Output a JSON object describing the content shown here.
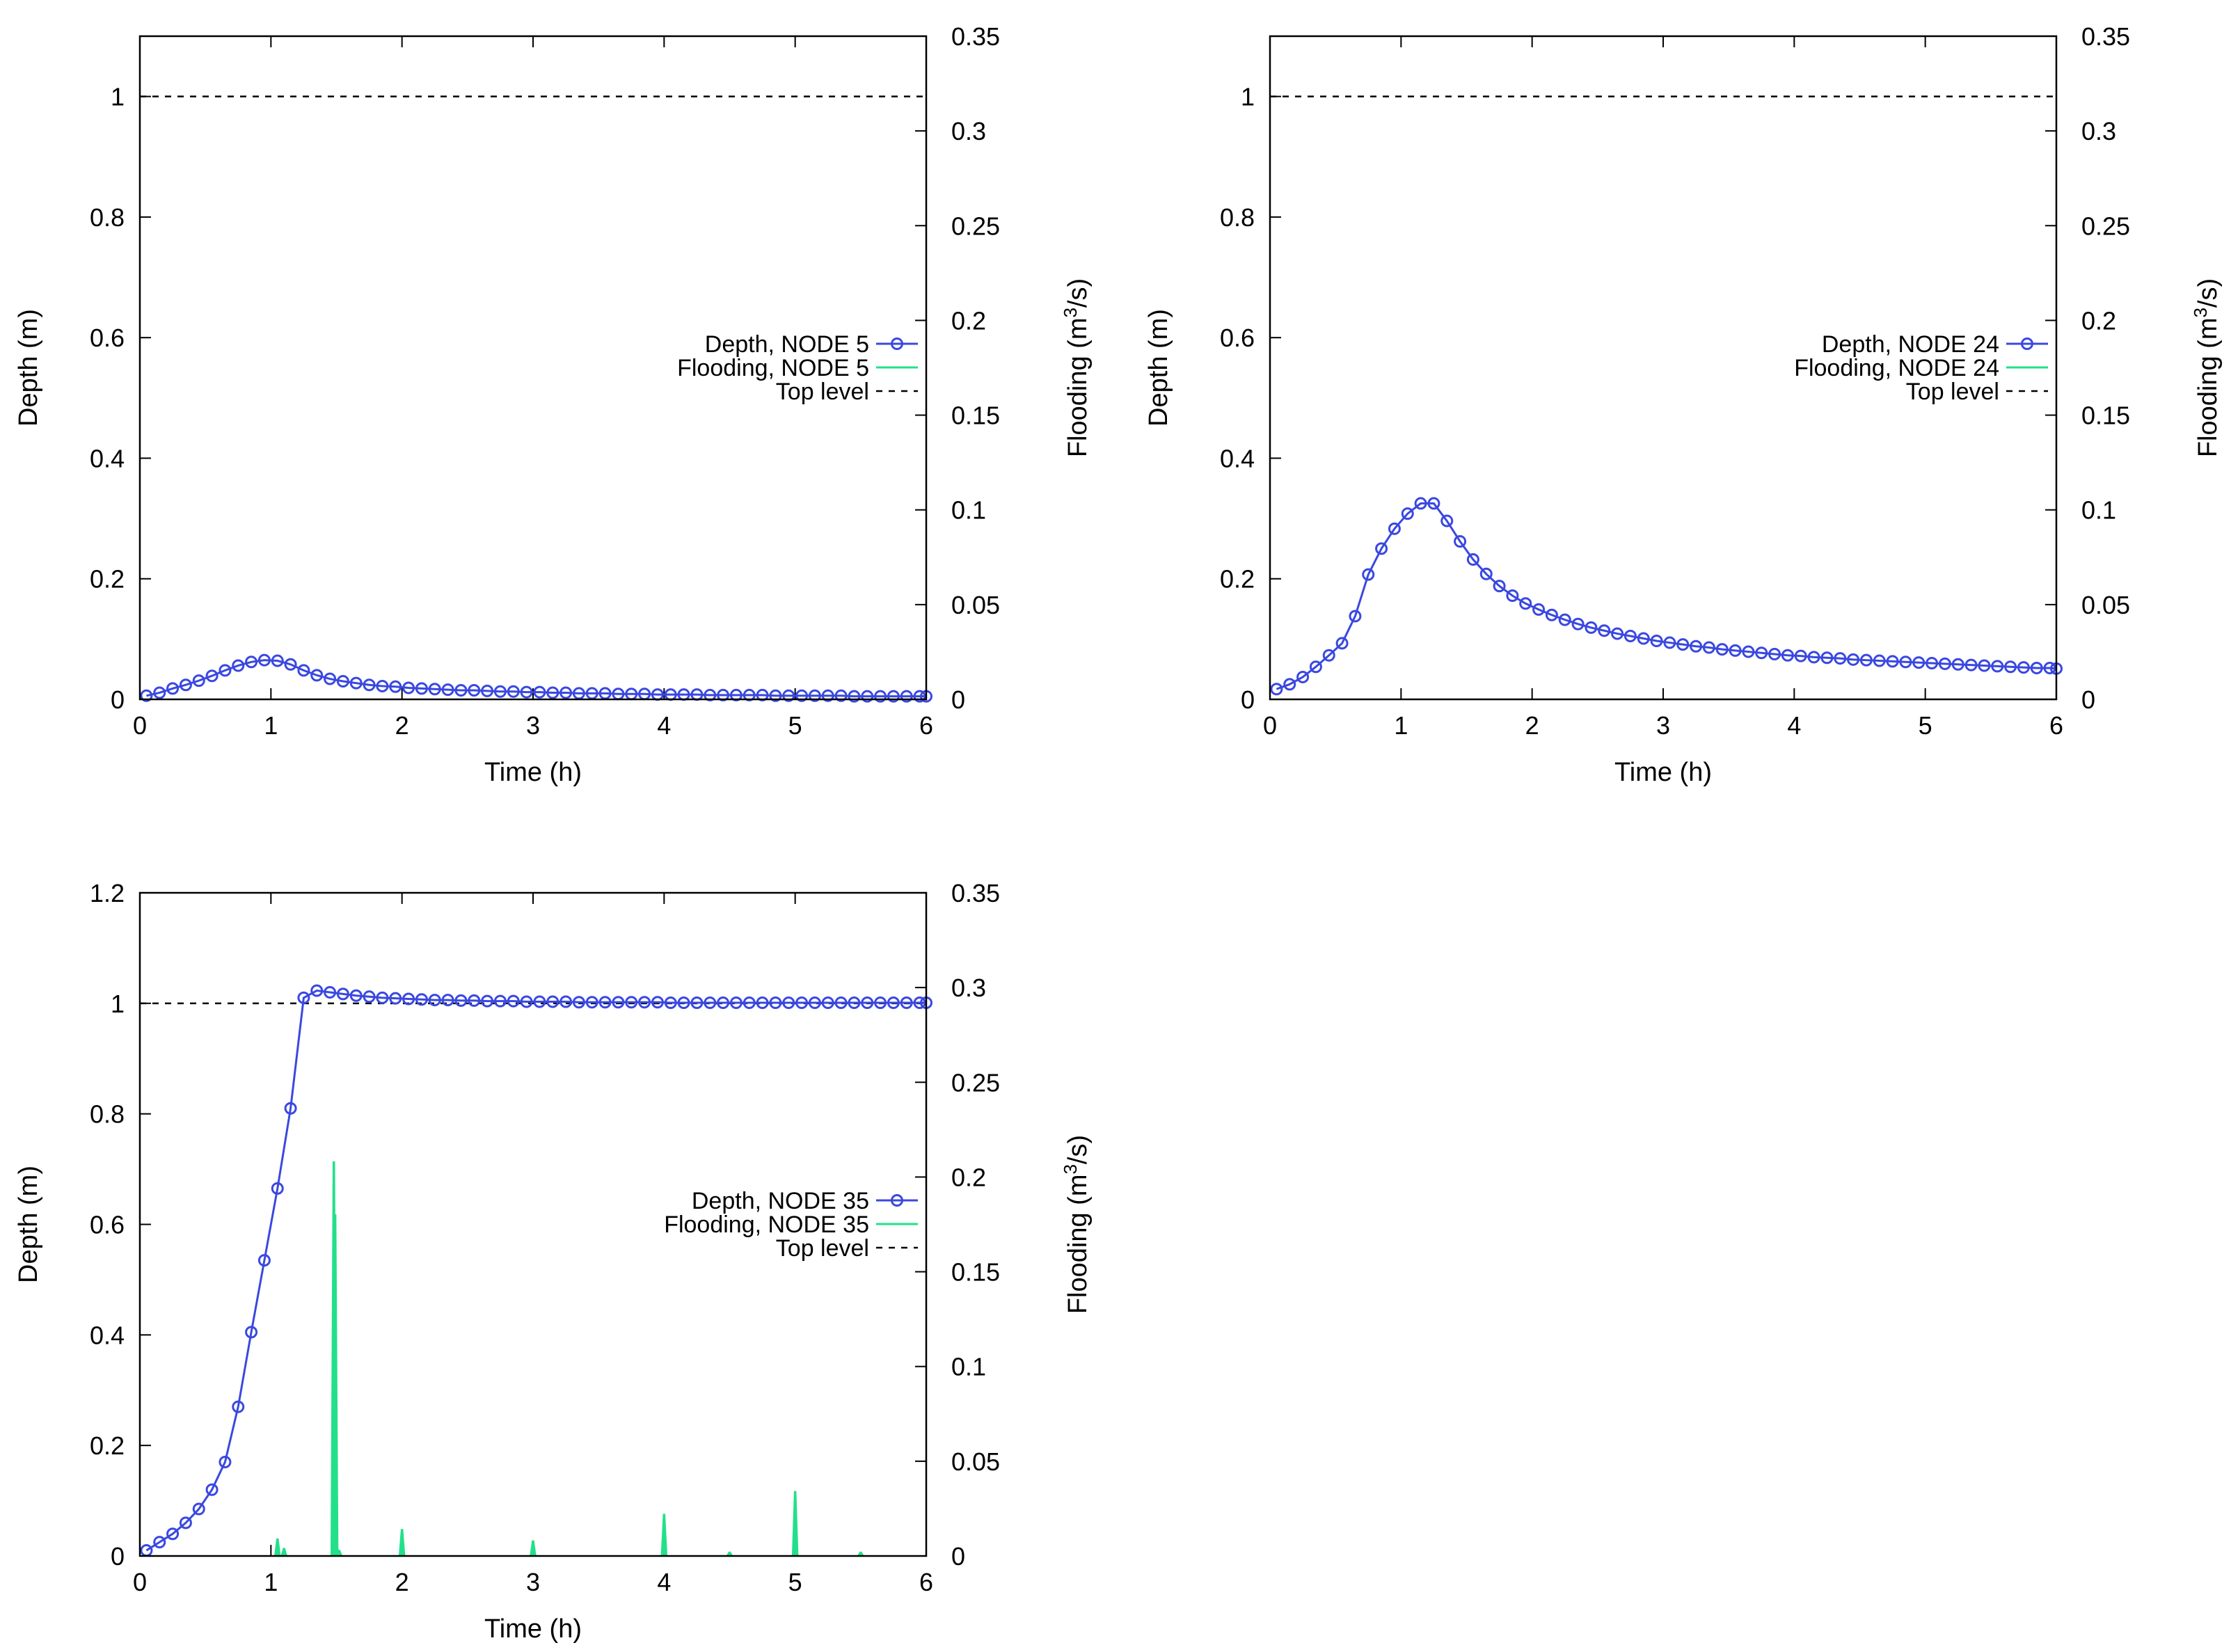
{
  "colors": {
    "depth": "#3a48e0",
    "flooding": "#22e08a",
    "top_level": "#000000",
    "axis": "#000000"
  },
  "chart_data": [
    {
      "type": "line",
      "id": "node5",
      "xlabel": "Time (h)",
      "ylabel": "Depth (m)",
      "y2label": "Flooding (m³/s)",
      "y2label_base": "Flooding (m",
      "y2label_sup": "3",
      "y2label_tail": "/s)",
      "xlim": [
        0,
        6
      ],
      "ylim": [
        0,
        1.1
      ],
      "y2lim": [
        0,
        0.35
      ],
      "xticks": [
        0,
        1,
        2,
        3,
        4,
        5,
        6
      ],
      "yticks": [
        0,
        0.2,
        0.4,
        0.6,
        0.8,
        1
      ],
      "y2ticks": [
        0,
        0.05,
        0.1,
        0.15,
        0.2,
        0.25,
        0.3,
        0.35
      ],
      "xtick_labels": [
        "0",
        "1",
        "2",
        "3",
        "4",
        "5",
        "6"
      ],
      "ytick_labels": [
        "0",
        "0.2",
        "0.4",
        "0.6",
        "0.8",
        "1"
      ],
      "y2tick_labels": [
        "0",
        "0.05",
        "0.1",
        "0.15",
        "0.2",
        "0.25",
        "0.3",
        "0.35"
      ],
      "legend": [
        "Depth, NODE 5",
        "Flooding, NODE 5",
        "Top level"
      ],
      "top_level": 1,
      "depth_series": {
        "name": "Depth, NODE 5",
        "x": [
          0.05,
          0.15,
          0.25,
          0.35,
          0.45,
          0.55,
          0.65,
          0.75,
          0.85,
          0.95,
          1.05,
          1.15,
          1.25,
          1.35,
          1.45,
          1.55,
          1.65,
          1.75,
          1.85,
          1.95,
          2.05,
          2.15,
          2.25,
          2.35,
          2.45,
          2.55,
          2.65,
          2.75,
          2.85,
          2.95,
          3.05,
          3.15,
          3.25,
          3.35,
          3.45,
          3.55,
          3.65,
          3.75,
          3.85,
          3.95,
          4.05,
          4.15,
          4.25,
          4.35,
          4.45,
          4.55,
          4.65,
          4.75,
          4.85,
          4.95,
          5.05,
          5.15,
          5.25,
          5.35,
          5.45,
          5.55,
          5.65,
          5.75,
          5.85,
          5.95,
          6.0
        ],
        "y": [
          0.006,
          0.011,
          0.018,
          0.024,
          0.031,
          0.039,
          0.048,
          0.056,
          0.062,
          0.065,
          0.064,
          0.058,
          0.048,
          0.04,
          0.034,
          0.03,
          0.027,
          0.024,
          0.022,
          0.021,
          0.019,
          0.018,
          0.017,
          0.016,
          0.015,
          0.015,
          0.014,
          0.013,
          0.013,
          0.012,
          0.012,
          0.011,
          0.011,
          0.01,
          0.01,
          0.01,
          0.009,
          0.009,
          0.009,
          0.008,
          0.008,
          0.008,
          0.008,
          0.007,
          0.007,
          0.007,
          0.007,
          0.007,
          0.006,
          0.006,
          0.006,
          0.006,
          0.006,
          0.006,
          0.005,
          0.005,
          0.005,
          0.005,
          0.005,
          0.005,
          0.005
        ]
      },
      "flooding_series": {
        "name": "Flooding, NODE 5",
        "spikes": []
      }
    },
    {
      "type": "line",
      "id": "node24",
      "xlabel": "Time (h)",
      "ylabel": "Depth (m)",
      "y2label": "Flooding (m³/s)",
      "y2label_base": "Flooding (m",
      "y2label_sup": "3",
      "y2label_tail": "/s)",
      "xlim": [
        0,
        6
      ],
      "ylim": [
        0,
        1.1
      ],
      "y2lim": [
        0,
        0.35
      ],
      "xticks": [
        0,
        1,
        2,
        3,
        4,
        5,
        6
      ],
      "yticks": [
        0,
        0.2,
        0.4,
        0.6,
        0.8,
        1
      ],
      "y2ticks": [
        0,
        0.05,
        0.1,
        0.15,
        0.2,
        0.25,
        0.3,
        0.35
      ],
      "xtick_labels": [
        "0",
        "1",
        "2",
        "3",
        "4",
        "5",
        "6"
      ],
      "ytick_labels": [
        "0",
        "0.2",
        "0.4",
        "0.6",
        "0.8",
        "1"
      ],
      "y2tick_labels": [
        "0",
        "0.05",
        "0.1",
        "0.15",
        "0.2",
        "0.25",
        "0.3",
        "0.35"
      ],
      "legend": [
        "Depth, NODE 24",
        "Flooding, NODE 24",
        "Top level"
      ],
      "top_level": 1,
      "depth_series": {
        "name": "Depth, NODE 24",
        "x": [
          0.05,
          0.15,
          0.25,
          0.35,
          0.45,
          0.55,
          0.65,
          0.75,
          0.85,
          0.95,
          1.05,
          1.15,
          1.25,
          1.35,
          1.45,
          1.55,
          1.65,
          1.75,
          1.85,
          1.95,
          2.05,
          2.15,
          2.25,
          2.35,
          2.45,
          2.55,
          2.65,
          2.75,
          2.85,
          2.95,
          3.05,
          3.15,
          3.25,
          3.35,
          3.45,
          3.55,
          3.65,
          3.75,
          3.85,
          3.95,
          4.05,
          4.15,
          4.25,
          4.35,
          4.45,
          4.55,
          4.65,
          4.75,
          4.85,
          4.95,
          5.05,
          5.15,
          5.25,
          5.35,
          5.45,
          5.55,
          5.65,
          5.75,
          5.85,
          5.95,
          6.0
        ],
        "y": [
          0.017,
          0.025,
          0.037,
          0.054,
          0.073,
          0.093,
          0.138,
          0.207,
          0.25,
          0.283,
          0.308,
          0.325,
          0.325,
          0.296,
          0.262,
          0.232,
          0.208,
          0.188,
          0.172,
          0.159,
          0.149,
          0.14,
          0.132,
          0.125,
          0.119,
          0.114,
          0.109,
          0.105,
          0.101,
          0.097,
          0.094,
          0.091,
          0.088,
          0.086,
          0.083,
          0.081,
          0.079,
          0.077,
          0.075,
          0.073,
          0.072,
          0.07,
          0.069,
          0.068,
          0.066,
          0.065,
          0.064,
          0.063,
          0.062,
          0.061,
          0.06,
          0.059,
          0.058,
          0.057,
          0.056,
          0.055,
          0.054,
          0.053,
          0.052,
          0.052,
          0.051
        ]
      },
      "flooding_series": {
        "name": "Flooding, NODE 24",
        "spikes": []
      }
    },
    {
      "type": "line",
      "id": "node35",
      "xlabel": "Time (h)",
      "ylabel": "Depth (m)",
      "y2label": "Flooding (m³/s)",
      "y2label_base": "Flooding (m",
      "y2label_sup": "3",
      "y2label_tail": "/s)",
      "xlim": [
        0,
        6
      ],
      "ylim": [
        0,
        1.2
      ],
      "y2lim": [
        0,
        0.35
      ],
      "xticks": [
        0,
        1,
        2,
        3,
        4,
        5,
        6
      ],
      "yticks": [
        0,
        0.2,
        0.4,
        0.6,
        0.8,
        1,
        1.2
      ],
      "y2ticks": [
        0,
        0.05,
        0.1,
        0.15,
        0.2,
        0.25,
        0.3,
        0.35
      ],
      "xtick_labels": [
        "0",
        "1",
        "2",
        "3",
        "4",
        "5",
        "6"
      ],
      "ytick_labels": [
        "0",
        "0.2",
        "0.4",
        "0.6",
        "0.8",
        "1",
        "1.2"
      ],
      "y2tick_labels": [
        "0",
        "0.05",
        "0.1",
        "0.15",
        "0.2",
        "0.25",
        "0.3",
        "0.35"
      ],
      "legend": [
        "Depth, NODE 35",
        "Flooding, NODE 35",
        "Top level"
      ],
      "top_level": 1,
      "depth_series": {
        "name": "Depth, NODE 35",
        "x": [
          0.05,
          0.15,
          0.25,
          0.35,
          0.45,
          0.55,
          0.65,
          0.75,
          0.85,
          0.95,
          1.05,
          1.15,
          1.25,
          1.35,
          1.45,
          1.55,
          1.65,
          1.75,
          1.85,
          1.95,
          2.05,
          2.15,
          2.25,
          2.35,
          2.45,
          2.55,
          2.65,
          2.75,
          2.85,
          2.95,
          3.05,
          3.15,
          3.25,
          3.35,
          3.45,
          3.55,
          3.65,
          3.75,
          3.85,
          3.95,
          4.05,
          4.15,
          4.25,
          4.35,
          4.45,
          4.55,
          4.65,
          4.75,
          4.85,
          4.95,
          5.05,
          5.15,
          5.25,
          5.35,
          5.45,
          5.55,
          5.65,
          5.75,
          5.85,
          5.95,
          6.0
        ],
        "y": [
          0.01,
          0.025,
          0.04,
          0.06,
          0.085,
          0.12,
          0.17,
          0.27,
          0.405,
          0.535,
          0.665,
          0.81,
          1.01,
          1.023,
          1.02,
          1.017,
          1.014,
          1.012,
          1.01,
          1.009,
          1.008,
          1.007,
          1.006,
          1.006,
          1.005,
          1.005,
          1.004,
          1.004,
          1.004,
          1.003,
          1.003,
          1.003,
          1.003,
          1.002,
          1.002,
          1.002,
          1.002,
          1.002,
          1.002,
          1.002,
          1.001,
          1.001,
          1.001,
          1.001,
          1.001,
          1.001,
          1.001,
          1.001,
          1.001,
          1.001,
          1.001,
          1.001,
          1.001,
          1.001,
          1.001,
          1.001,
          1.001,
          1.001,
          1.001,
          1.001,
          1.001
        ]
      },
      "flooding_series": {
        "name": "Flooding, NODE 35",
        "spikes": [
          {
            "x": 1.05,
            "y": 0.009
          },
          {
            "x": 1.1,
            "y": 0.004
          },
          {
            "x": 1.48,
            "y": 0.208
          },
          {
            "x": 1.49,
            "y": 0.18
          },
          {
            "x": 1.52,
            "y": 0.003
          },
          {
            "x": 2.0,
            "y": 0.014
          },
          {
            "x": 3.0,
            "y": 0.008
          },
          {
            "x": 4.0,
            "y": 0.022
          },
          {
            "x": 4.5,
            "y": 0.002
          },
          {
            "x": 5.0,
            "y": 0.034
          },
          {
            "x": 5.5,
            "y": 0.002
          }
        ]
      }
    }
  ]
}
